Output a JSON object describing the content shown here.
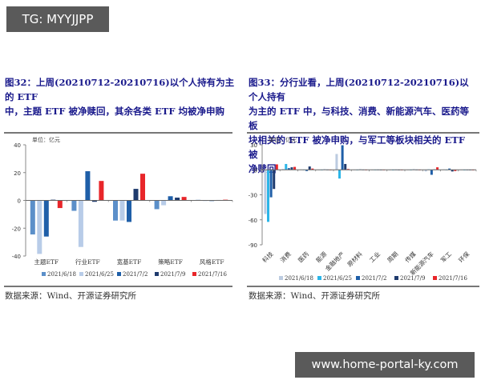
{
  "watermarks": {
    "top": "TG: MYYJJPP",
    "bottom": "www.home-portal-ky.com"
  },
  "left_panel": {
    "title_line1": "图32：上周(20210712-20210716)以个人持有为主的 ETF",
    "title_line2": "中，主题 ETF 被净赎回，其余各类 ETF 均被净申购",
    "unit": "单位：亿元",
    "source": "数据来源：Wind、开源证券研究所"
  },
  "right_panel": {
    "title_line1": "图33：分行业看，上周(20210712-20210716)以个人持有",
    "title_line2": "为主的 ETF 中，与科技、消费、新能源汽车、医药等板",
    "title_line3": "块相关的 ETF 被净申购，与军工等板块相关的 ETF 被",
    "title_line4": "净赎回",
    "unit": "单位：亿元",
    "source": "数据来源：Wind、开源证券研究所"
  },
  "chart_data": [
    {
      "type": "bar",
      "title": "图32：上周(20210712-20210716)以个人持有为主的 ETF 中，主题 ETF 被净赎回，其余各类 ETF 均被净申购",
      "ylabel": "单位：亿元",
      "xlabel": "",
      "ylim": [
        -40,
        40
      ],
      "yticks": [
        40,
        20,
        0,
        -20,
        -40
      ],
      "grid": false,
      "legend_position": "bottom",
      "categories": [
        "主题ETF",
        "行业ETF",
        "宽基ETF",
        "策略ETF",
        "风格ETF"
      ],
      "series": [
        {
          "name": "2021/6/18",
          "color": "#5b8fc9",
          "values": [
            -24.5,
            -7.5,
            -14.5,
            -6.3,
            0.4
          ]
        },
        {
          "name": "2021/6/25",
          "color": "#b8cce8",
          "values": [
            -38.5,
            -33.5,
            -14.5,
            -3.5,
            0.0
          ]
        },
        {
          "name": "2021/7/2",
          "color": "#1f5fa8",
          "values": [
            -26,
            21,
            -15.5,
            3,
            -0.4
          ]
        },
        {
          "name": "2021/7/9",
          "color": "#1f3b6e",
          "values": [
            0.5,
            -1,
            8.3,
            2,
            0.3
          ]
        },
        {
          "name": "2021/7/16",
          "color": "#e8262a",
          "values": [
            -5.5,
            14,
            19.2,
            2.5,
            0.5
          ]
        }
      ]
    },
    {
      "type": "bar",
      "title": "图33：分行业看，上周(20210712-20210716)以个人持有为主的 ETF 中，与科技、消费、新能源汽车、医药等板块相关的 ETF 被净申购，与军工等板块相关的 ETF 被净赎回",
      "ylabel": "单位：亿元",
      "xlabel": "",
      "ylim": [
        -90,
        30
      ],
      "yticks": [
        30,
        0,
        -30,
        -60,
        -90
      ],
      "grid": false,
      "legend_position": "bottom",
      "categories": [
        "科技",
        "消费",
        "医药",
        "能源",
        "金融地产",
        "原材料",
        "工业",
        "周期",
        "传媒",
        "新能源汽车",
        "军工",
        "环保"
      ],
      "series": [
        {
          "name": "2021/6/18",
          "color": "#bccbe0",
          "values": [
            -53,
            1,
            0.5,
            0.3,
            19,
            0.3,
            0.2,
            0.2,
            0.3,
            -2,
            0.5,
            0.2
          ]
        },
        {
          "name": "2021/6/25",
          "color": "#2bb5e8",
          "values": [
            -62.5,
            7,
            0.3,
            0.2,
            -10.5,
            0.2,
            0.2,
            0.1,
            0.2,
            0.5,
            0.3,
            0.1
          ]
        },
        {
          "name": "2021/7/2",
          "color": "#1f5fa8",
          "values": [
            -33,
            2,
            -1.5,
            0.5,
            29.5,
            0.5,
            0.3,
            0.3,
            0.5,
            -6,
            1.5,
            0.2
          ]
        },
        {
          "name": "2021/7/9",
          "color": "#1f3b6e",
          "values": [
            -23,
            3,
            4,
            0.3,
            7,
            0.3,
            0.2,
            0.2,
            0.3,
            0.5,
            -2,
            0.2
          ]
        },
        {
          "name": "2021/7/16",
          "color": "#e8262a",
          "values": [
            6.5,
            3.5,
            1.5,
            0.2,
            1,
            0.2,
            0.2,
            0.2,
            0.2,
            3,
            -1.5,
            0.1
          ]
        }
      ]
    }
  ]
}
